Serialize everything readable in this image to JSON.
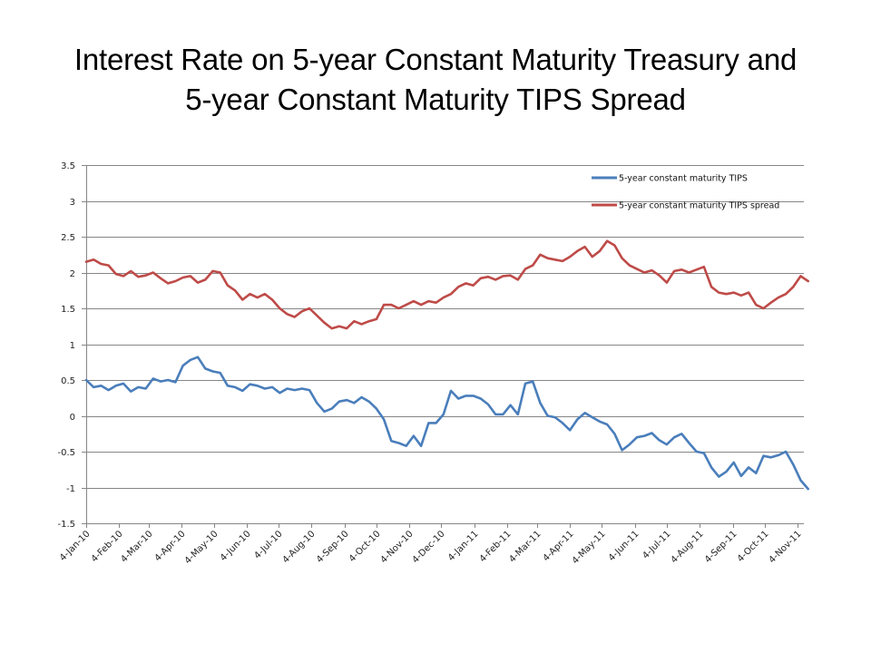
{
  "title_lines": [
    "Interest Rate on 5-year Constant Maturity Treasury and",
    "5-year Constant Maturity TIPS Spread"
  ],
  "chart_data": {
    "type": "line",
    "title": "Interest Rate on 5-year Constant Maturity Treasury and 5-year Constant Maturity TIPS Spread",
    "xlabel": "",
    "ylabel": "",
    "ylim": [
      -1.5,
      3.5
    ],
    "yticks": [
      3.5,
      3,
      2.5,
      2,
      1.5,
      1,
      0.5,
      0,
      -0.5,
      -1,
      -1.5
    ],
    "ytick_labels": [
      "3.5",
      "3",
      "2.5",
      "2",
      "1.5",
      "1",
      "0.5",
      "0",
      "-0.5",
      "-1",
      "-1.5"
    ],
    "grid": "horizontal",
    "legend_position": "top-right",
    "xlim": [
      "2010-01-04",
      "2011-11-14"
    ],
    "xticks": [
      "2010-01-04",
      "2010-02-04",
      "2010-03-04",
      "2010-04-04",
      "2010-05-04",
      "2010-06-04",
      "2010-07-04",
      "2010-08-04",
      "2010-09-04",
      "2010-10-04",
      "2010-11-04",
      "2010-12-04",
      "2011-01-04",
      "2011-02-04",
      "2011-03-04",
      "2011-04-04",
      "2011-05-04",
      "2011-06-04",
      "2011-07-04",
      "2011-08-04",
      "2011-09-04",
      "2011-10-04",
      "2011-11-04"
    ],
    "xtick_labels": [
      "4-Jan-10",
      "4-Feb-10",
      "4-Mar-10",
      "4-Apr-10",
      "4-May-10",
      "4-Jun-10",
      "4-Jul-10",
      "4-Aug-10",
      "4-Sep-10",
      "4-Oct-10",
      "4-Nov-10",
      "4-Dec-10",
      "4-Jan-11",
      "4-Feb-11",
      "4-Mar-11",
      "4-Apr-11",
      "4-May-11",
      "4-Jun-11",
      "4-Jul-11",
      "4-Aug-11",
      "4-Sep-11",
      "4-Oct-11",
      "4-Nov-11"
    ],
    "x": [
      "2010-01-04",
      "2010-01-11",
      "2010-01-18",
      "2010-01-25",
      "2010-02-01",
      "2010-02-08",
      "2010-02-15",
      "2010-02-22",
      "2010-03-01",
      "2010-03-08",
      "2010-03-15",
      "2010-03-22",
      "2010-03-29",
      "2010-04-05",
      "2010-04-12",
      "2010-04-19",
      "2010-04-26",
      "2010-05-03",
      "2010-05-10",
      "2010-05-17",
      "2010-05-24",
      "2010-05-31",
      "2010-06-07",
      "2010-06-14",
      "2010-06-21",
      "2010-06-28",
      "2010-07-05",
      "2010-07-12",
      "2010-07-19",
      "2010-07-26",
      "2010-08-02",
      "2010-08-09",
      "2010-08-16",
      "2010-08-23",
      "2010-08-30",
      "2010-09-06",
      "2010-09-13",
      "2010-09-20",
      "2010-09-27",
      "2010-10-04",
      "2010-10-11",
      "2010-10-18",
      "2010-10-25",
      "2010-11-01",
      "2010-11-08",
      "2010-11-15",
      "2010-11-22",
      "2010-11-29",
      "2010-12-06",
      "2010-12-13",
      "2010-12-20",
      "2010-12-27",
      "2011-01-03",
      "2011-01-10",
      "2011-01-17",
      "2011-01-24",
      "2011-01-31",
      "2011-02-07",
      "2011-02-14",
      "2011-02-21",
      "2011-02-28",
      "2011-03-07",
      "2011-03-14",
      "2011-03-21",
      "2011-03-28",
      "2011-04-04",
      "2011-04-11",
      "2011-04-18",
      "2011-04-25",
      "2011-05-02",
      "2011-05-09",
      "2011-05-16",
      "2011-05-23",
      "2011-05-30",
      "2011-06-06",
      "2011-06-13",
      "2011-06-20",
      "2011-06-27",
      "2011-07-04",
      "2011-07-11",
      "2011-07-18",
      "2011-07-25",
      "2011-08-01",
      "2011-08-08",
      "2011-08-15",
      "2011-08-22",
      "2011-08-29",
      "2011-09-05",
      "2011-09-12",
      "2011-09-19",
      "2011-09-26",
      "2011-10-03",
      "2011-10-10",
      "2011-10-17",
      "2011-10-24",
      "2011-10-31",
      "2011-11-07",
      "2011-11-14"
    ],
    "series": [
      {
        "name": "5-year constant maturity TIPS",
        "color": "#4a7ebb",
        "values": [
          0.5,
          0.4,
          0.42,
          0.36,
          0.42,
          0.45,
          0.34,
          0.4,
          0.38,
          0.52,
          0.48,
          0.5,
          0.47,
          0.7,
          0.78,
          0.82,
          0.66,
          0.62,
          0.6,
          0.42,
          0.4,
          0.35,
          0.44,
          0.42,
          0.38,
          0.4,
          0.32,
          0.38,
          0.36,
          0.38,
          0.36,
          0.18,
          0.06,
          0.1,
          0.2,
          0.22,
          0.18,
          0.26,
          0.2,
          0.1,
          -0.05,
          -0.35,
          -0.38,
          -0.42,
          -0.28,
          -0.42,
          -0.1,
          -0.1,
          0.02,
          0.35,
          0.24,
          0.28,
          0.28,
          0.24,
          0.16,
          0.02,
          0.02,
          0.15,
          0.02,
          0.45,
          0.48,
          0.18,
          0.0,
          -0.02,
          -0.1,
          -0.2,
          -0.05,
          0.04,
          -0.02,
          -0.08,
          -0.12,
          -0.25,
          -0.48,
          -0.4,
          -0.3,
          -0.28,
          -0.24,
          -0.34,
          -0.4,
          -0.3,
          -0.25,
          -0.38,
          -0.5,
          -0.52,
          -0.72,
          -0.85,
          -0.78,
          -0.65,
          -0.84,
          -0.72,
          -0.8,
          -0.56,
          -0.58,
          -0.55,
          -0.5,
          -0.68,
          -0.9,
          -1.02
        ]
      },
      {
        "name": "5-year constant maturity TIPS spread",
        "color": "#be4b48",
        "values": [
          2.15,
          2.18,
          2.12,
          2.1,
          1.98,
          1.95,
          2.02,
          1.94,
          1.96,
          2.0,
          1.92,
          1.85,
          1.88,
          1.93,
          1.95,
          1.86,
          1.9,
          2.02,
          2.0,
          1.82,
          1.75,
          1.62,
          1.7,
          1.65,
          1.7,
          1.62,
          1.5,
          1.42,
          1.38,
          1.46,
          1.5,
          1.4,
          1.3,
          1.22,
          1.25,
          1.22,
          1.32,
          1.28,
          1.32,
          1.35,
          1.55,
          1.55,
          1.5,
          1.55,
          1.6,
          1.55,
          1.6,
          1.58,
          1.65,
          1.7,
          1.8,
          1.85,
          1.82,
          1.92,
          1.94,
          1.9,
          1.95,
          1.96,
          1.9,
          2.05,
          2.1,
          2.25,
          2.2,
          2.18,
          2.16,
          2.22,
          2.3,
          2.36,
          2.22,
          2.3,
          2.44,
          2.38,
          2.2,
          2.1,
          2.05,
          2.0,
          2.03,
          1.96,
          1.86,
          2.02,
          2.04,
          2.0,
          2.04,
          2.08,
          1.8,
          1.72,
          1.7,
          1.72,
          1.68,
          1.72,
          1.55,
          1.5,
          1.58,
          1.65,
          1.7,
          1.8,
          1.95,
          1.88
        ]
      }
    ]
  }
}
